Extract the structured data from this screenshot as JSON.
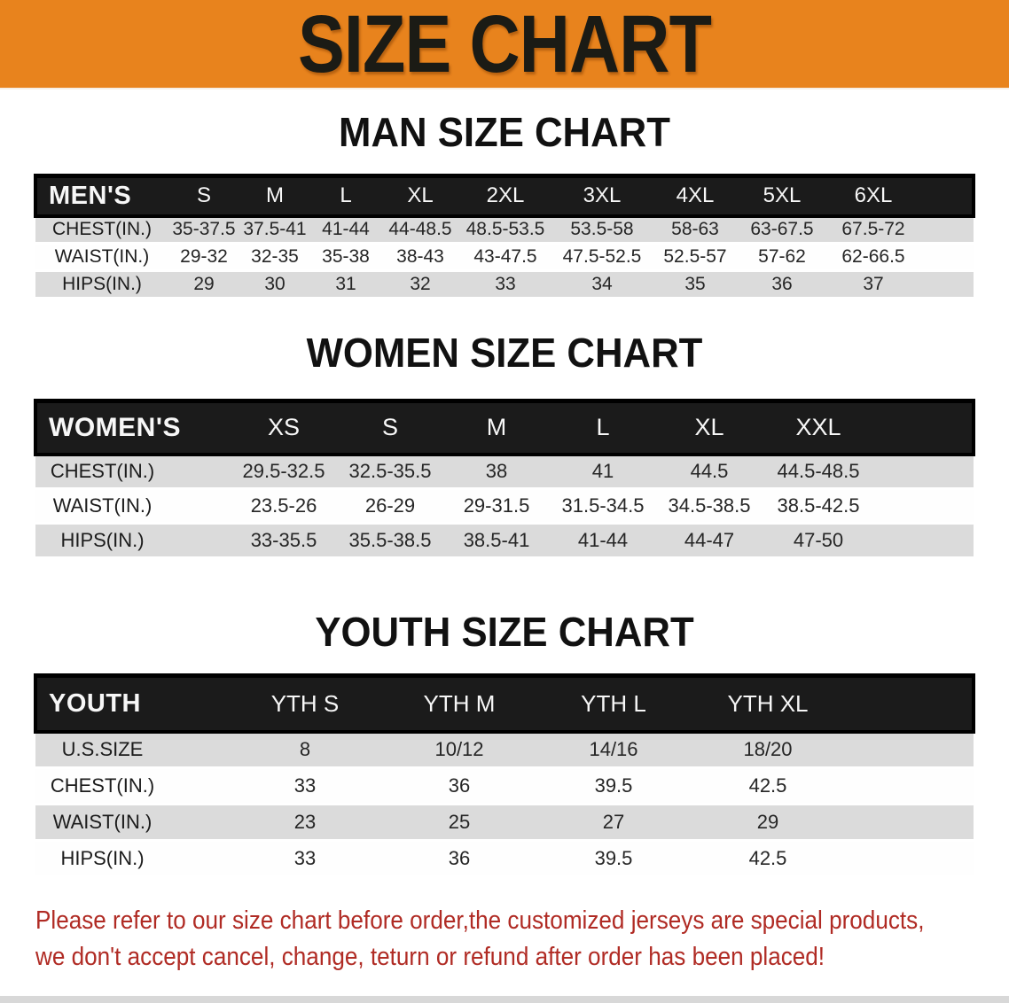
{
  "banner": {
    "title": "SIZE CHART",
    "bg_color": "#E8831D",
    "text_color": "#1B1B15"
  },
  "sections": [
    {
      "heading": "MAN SIZE CHART",
      "group_label": "MEN'S",
      "columns": [
        "S",
        "M",
        "L",
        "XL",
        "2XL",
        "3XL",
        "4XL",
        "5XL",
        "6XL"
      ],
      "rows": [
        {
          "label": "CHEST(IN.)",
          "values": [
            "35-37.5",
            "37.5-41",
            "41-44",
            "44-48.5",
            "48.5-53.5",
            "53.5-58",
            "58-63",
            "63-67.5",
            "67.5-72"
          ]
        },
        {
          "label": "WAIST(IN.)",
          "values": [
            "29-32",
            "32-35",
            "35-38",
            "38-43",
            "43-47.5",
            "47.5-52.5",
            "52.5-57",
            "57-62",
            "62-66.5"
          ]
        },
        {
          "label": "HIPS(IN.)",
          "values": [
            "29",
            "30",
            "31",
            "32",
            "33",
            "34",
            "35",
            "36",
            "37"
          ]
        }
      ]
    },
    {
      "heading": "WOMEN SIZE CHART",
      "group_label": "WOMEN'S",
      "columns": [
        "XS",
        "S",
        "M",
        "L",
        "XL",
        "XXL"
      ],
      "rows": [
        {
          "label": "CHEST(IN.)",
          "values": [
            "29.5-32.5",
            "32.5-35.5",
            "38",
            "41",
            "44.5",
            "44.5-48.5"
          ]
        },
        {
          "label": "WAIST(IN.)",
          "values": [
            "23.5-26",
            "26-29",
            "29-31.5",
            "31.5-34.5",
            "34.5-38.5",
            "38.5-42.5"
          ]
        },
        {
          "label": "HIPS(IN.)",
          "values": [
            "33-35.5",
            "35.5-38.5",
            "38.5-41",
            "41-44",
            "44-47",
            "47-50"
          ]
        }
      ]
    },
    {
      "heading": "YOUTH SIZE CHART",
      "group_label": "YOUTH",
      "columns": [
        "YTH S",
        "YTH M",
        "YTH L",
        "YTH XL"
      ],
      "rows": [
        {
          "label": "U.S.SIZE",
          "values": [
            "8",
            "10/12",
            "14/16",
            "18/20"
          ]
        },
        {
          "label": "CHEST(IN.)",
          "values": [
            "33",
            "36",
            "39.5",
            "42.5"
          ]
        },
        {
          "label": "WAIST(IN.)",
          "values": [
            "23",
            "25",
            "27",
            "29"
          ]
        },
        {
          "label": "HIPS(IN.)",
          "values": [
            "33",
            "36",
            "39.5",
            "42.5"
          ]
        }
      ]
    }
  ],
  "disclaimer": {
    "lines": [
      "Please refer to our size chart before order,the customized jerseys are special products,",
      "we don't accept cancel, change, teturn or refund after order has been placed!"
    ],
    "color": "#B02B24"
  },
  "colors": {
    "header_bar_bg": "#1B1B1B",
    "row_shaded": "#DBDBDB",
    "row_plain": "#FEFEFE"
  }
}
